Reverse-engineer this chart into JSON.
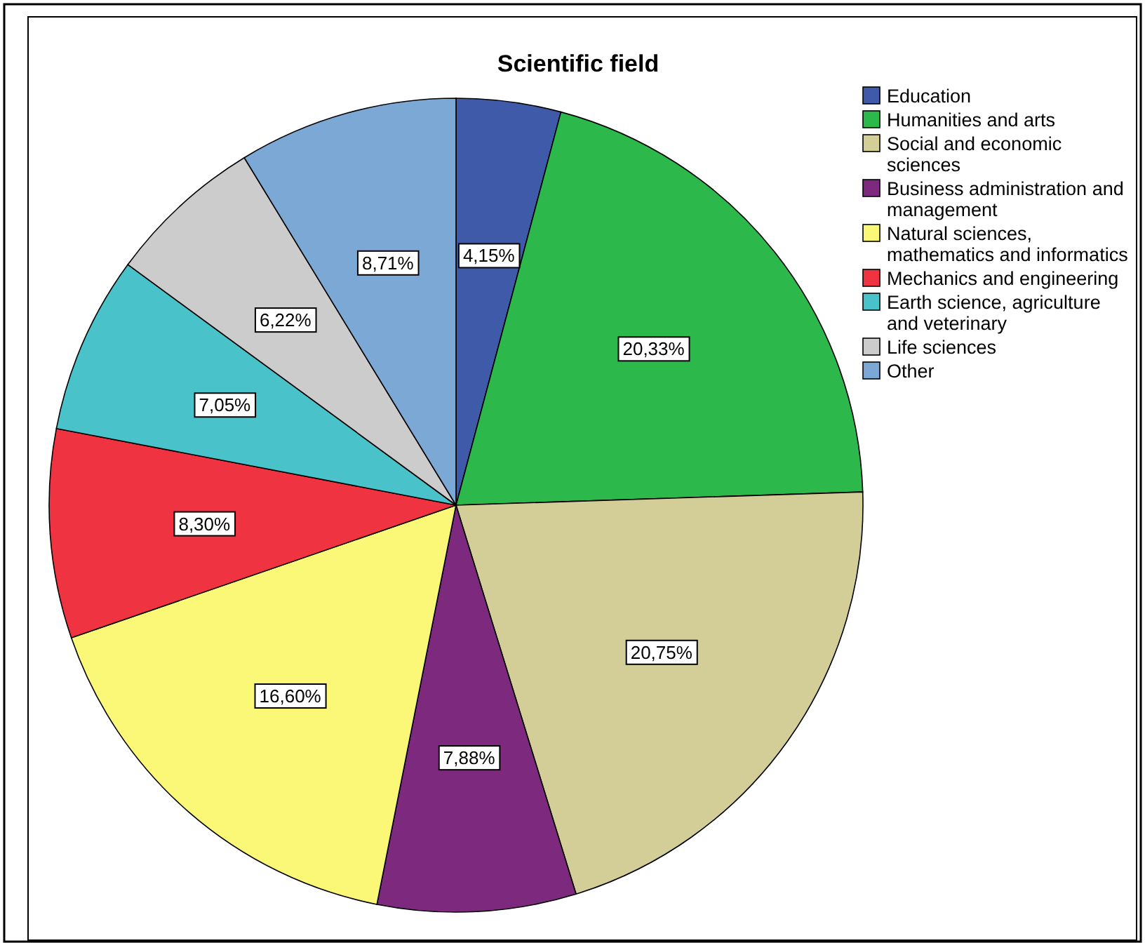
{
  "chart_data": {
    "type": "pie",
    "title": "Scientific field",
    "categories": [
      "Education",
      "Humanities and arts",
      "Social and economic sciences",
      "Business administration and management",
      "Natural sciences, mathematics and informatics",
      "Mechanics and engineering",
      "Earth science, agriculture and veterinary",
      "Life sciences",
      "Other"
    ],
    "values": [
      4.15,
      20.33,
      20.75,
      7.88,
      16.6,
      8.3,
      7.05,
      6.22,
      8.71
    ],
    "value_labels": [
      "4,15%",
      "20,33%",
      "20,75%",
      "7,88%",
      "16,60%",
      "8,30%",
      "7,05%",
      "6,22%",
      "8,71%"
    ],
    "colors": [
      "#3f5aa8",
      "#2db84b",
      "#d3ce97",
      "#7d2a7e",
      "#fbf777",
      "#ef3340",
      "#49c2c9",
      "#cccccc",
      "#7ca8d6"
    ],
    "legend": "right"
  }
}
